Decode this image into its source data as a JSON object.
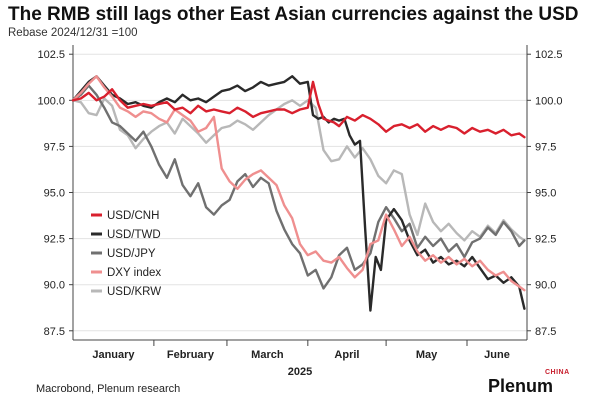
{
  "chart_data": {
    "type": "line",
    "title": "The RMB still lags other East Asian currencies against the USD",
    "subtitle": "Rebase 2024/12/31 =100",
    "source": "Macrobond, Plenum research",
    "brand": "Plenum",
    "brand_tag": "CHINA",
    "year_label": "2025",
    "ylim": [
      87,
      103
    ],
    "yticks": [
      87.5,
      90.0,
      92.5,
      95.0,
      97.5,
      100.0,
      102.5
    ],
    "ytick_labels": [
      "87.5",
      "90.0",
      "92.5",
      "95.0",
      "97.5",
      "100.0",
      "102.5"
    ],
    "xlim": [
      0,
      174
    ],
    "months": [
      {
        "label": "January",
        "start": 0,
        "end": 31
      },
      {
        "label": "February",
        "start": 31,
        "end": 59
      },
      {
        "label": "March",
        "start": 59,
        "end": 90
      },
      {
        "label": "April",
        "start": 90,
        "end": 120
      },
      {
        "label": "May",
        "start": 120,
        "end": 151
      },
      {
        "label": "June",
        "start": 151,
        "end": 174
      }
    ],
    "legend_position": "left",
    "series": [
      {
        "name": "USD/CNH",
        "color": "#d9202e",
        "x": [
          0,
          3,
          6,
          9,
          12,
          15,
          18,
          21,
          24,
          27,
          30,
          33,
          36,
          39,
          42,
          45,
          48,
          51,
          54,
          57,
          60,
          63,
          66,
          69,
          72,
          75,
          78,
          81,
          84,
          87,
          90,
          92,
          94,
          96,
          98,
          100,
          102,
          105,
          108,
          111,
          114,
          117,
          120,
          123,
          126,
          129,
          132,
          135,
          138,
          141,
          144,
          147,
          150,
          153,
          156,
          159,
          162,
          165,
          168,
          171,
          173
        ],
        "y": [
          100.0,
          100.1,
          100.4,
          100.0,
          100.2,
          100.6,
          100.0,
          99.6,
          99.7,
          99.8,
          99.7,
          99.8,
          99.9,
          99.5,
          99.6,
          99.3,
          99.7,
          99.4,
          99.5,
          99.4,
          99.3,
          99.6,
          99.4,
          99.1,
          99.3,
          99.4,
          99.5,
          99.5,
          99.3,
          99.5,
          99.6,
          101.0,
          99.8,
          99.0,
          98.9,
          98.8,
          98.6,
          99.1,
          98.9,
          99.2,
          99.0,
          98.7,
          98.3,
          98.6,
          98.7,
          98.5,
          98.7,
          98.3,
          98.6,
          98.4,
          98.6,
          98.5,
          98.2,
          98.5,
          98.3,
          98.4,
          98.2,
          98.4,
          98.1,
          98.2,
          98.0
        ]
      },
      {
        "name": "USD/TWD",
        "color": "#2a2a2a",
        "x": [
          0,
          3,
          6,
          9,
          12,
          15,
          18,
          21,
          24,
          27,
          30,
          33,
          36,
          39,
          42,
          45,
          48,
          51,
          54,
          57,
          60,
          63,
          66,
          69,
          72,
          75,
          78,
          81,
          84,
          87,
          90,
          92,
          94,
          96,
          98,
          100,
          102,
          104,
          106,
          108,
          110,
          112,
          114,
          116,
          118,
          120,
          123,
          126,
          129,
          132,
          135,
          138,
          141,
          144,
          147,
          150,
          153,
          156,
          159,
          162,
          165,
          168,
          171,
          173
        ],
        "y": [
          100.0,
          100.5,
          101.0,
          101.3,
          100.8,
          100.3,
          100.1,
          99.8,
          99.9,
          99.7,
          99.6,
          99.9,
          100.1,
          99.9,
          100.3,
          100.0,
          100.1,
          99.9,
          100.2,
          100.5,
          100.6,
          100.8,
          100.5,
          100.7,
          101.0,
          100.8,
          100.9,
          101.0,
          101.3,
          100.9,
          101.0,
          99.2,
          99.0,
          99.1,
          98.8,
          99.0,
          98.9,
          99.0,
          98.1,
          97.6,
          97.8,
          93.0,
          88.6,
          91.5,
          90.8,
          93.5,
          94.1,
          93.5,
          92.4,
          91.6,
          91.9,
          91.2,
          91.5,
          91.1,
          91.3,
          91.0,
          91.5,
          90.9,
          90.3,
          90.5,
          90.1,
          90.4,
          89.9,
          88.7
        ]
      },
      {
        "name": "USD/JPY",
        "color": "#707070",
        "x": [
          0,
          3,
          6,
          9,
          12,
          15,
          18,
          21,
          24,
          27,
          30,
          33,
          36,
          39,
          42,
          45,
          48,
          51,
          54,
          57,
          60,
          63,
          66,
          69,
          72,
          75,
          78,
          81,
          84,
          87,
          90,
          93,
          96,
          99,
          102,
          105,
          108,
          111,
          114,
          117,
          120,
          123,
          126,
          129,
          132,
          135,
          138,
          141,
          144,
          147,
          150,
          153,
          156,
          159,
          162,
          165,
          168,
          171,
          173
        ],
        "y": [
          100.0,
          100.3,
          100.8,
          100.3,
          99.6,
          98.8,
          98.6,
          98.2,
          97.8,
          98.3,
          97.5,
          96.5,
          95.8,
          96.8,
          95.4,
          94.8,
          95.5,
          94.2,
          93.8,
          94.3,
          94.6,
          95.6,
          96.0,
          95.3,
          95.8,
          95.5,
          94.0,
          93.0,
          92.2,
          91.7,
          90.5,
          90.8,
          89.8,
          90.4,
          91.6,
          92.0,
          90.8,
          91.1,
          91.7,
          93.4,
          94.2,
          93.6,
          92.9,
          93.3,
          92.0,
          92.6,
          92.1,
          92.5,
          91.8,
          92.2,
          91.5,
          92.3,
          92.5,
          93.1,
          92.7,
          93.4,
          92.9,
          92.1,
          92.4
        ]
      },
      {
        "name": "DXY index",
        "color": "#ef8f8f",
        "x": [
          0,
          3,
          6,
          9,
          12,
          15,
          18,
          21,
          24,
          27,
          30,
          33,
          36,
          39,
          42,
          45,
          48,
          51,
          54,
          57,
          60,
          63,
          66,
          69,
          72,
          75,
          78,
          81,
          84,
          87,
          90,
          93,
          96,
          99,
          102,
          105,
          108,
          111,
          114,
          117,
          120,
          123,
          126,
          129,
          132,
          135,
          138,
          141,
          144,
          147,
          150,
          153,
          156,
          159,
          162,
          165,
          168,
          171,
          173
        ],
        "y": [
          100.0,
          100.4,
          100.9,
          101.3,
          100.7,
          100.2,
          99.6,
          99.4,
          99.1,
          99.4,
          99.3,
          99.0,
          98.8,
          99.5,
          99.2,
          98.9,
          98.3,
          98.5,
          99.1,
          96.3,
          95.6,
          95.2,
          95.7,
          96.0,
          96.2,
          95.8,
          95.4,
          94.3,
          93.6,
          92.2,
          91.6,
          91.8,
          91.3,
          91.2,
          91.5,
          90.9,
          90.4,
          90.8,
          92.2,
          92.4,
          93.8,
          93.0,
          92.1,
          92.6,
          91.8,
          91.3,
          91.6,
          91.2,
          91.5,
          91.1,
          91.4,
          91.0,
          91.3,
          90.8,
          90.5,
          90.7,
          90.2,
          89.9,
          89.7
        ]
      },
      {
        "name": "USD/KRW",
        "color": "#b8b8b8",
        "x": [
          0,
          3,
          6,
          9,
          12,
          15,
          18,
          21,
          24,
          27,
          30,
          33,
          36,
          39,
          42,
          45,
          48,
          51,
          54,
          57,
          60,
          63,
          66,
          69,
          72,
          75,
          78,
          81,
          84,
          87,
          90,
          93,
          96,
          99,
          102,
          105,
          108,
          111,
          114,
          117,
          120,
          123,
          126,
          129,
          132,
          135,
          138,
          141,
          144,
          147,
          150,
          153,
          156,
          159,
          162,
          165,
          168,
          171,
          173
        ],
        "y": [
          100.0,
          99.9,
          99.3,
          99.2,
          100.1,
          99.7,
          98.4,
          98.1,
          97.4,
          97.9,
          98.3,
          98.6,
          98.8,
          98.2,
          99.0,
          98.6,
          98.2,
          97.7,
          98.1,
          98.5,
          98.6,
          98.9,
          98.7,
          98.4,
          98.8,
          99.2,
          99.5,
          99.8,
          100.0,
          99.7,
          100.0,
          99.6,
          97.3,
          96.7,
          96.8,
          97.5,
          96.9,
          97.4,
          96.8,
          95.9,
          95.5,
          96.2,
          96.0,
          93.8,
          92.7,
          94.4,
          93.4,
          92.9,
          93.3,
          92.8,
          92.4,
          92.9,
          92.6,
          93.2,
          92.8,
          93.5,
          93.0,
          92.6,
          92.4
        ]
      }
    ]
  }
}
